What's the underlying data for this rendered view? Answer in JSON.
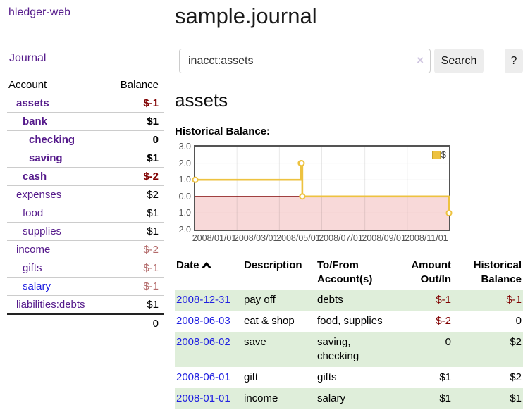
{
  "app": {
    "title": "hledger-web"
  },
  "colors": {
    "accent_purple": "#551a8b",
    "link_blue": "#2020e0",
    "negative_strong": "#800000",
    "negative_soft": "#b36a6a",
    "stripe_green": "#dfeeda",
    "button_gray": "#ededed"
  },
  "sidebar": {
    "journal_link": "Journal",
    "table": {
      "headers": {
        "account": "Account",
        "balance": "Balance"
      },
      "rows": [
        {
          "account": "assets",
          "balance": "$-1",
          "depth": 1,
          "bold": true,
          "neg": "strong"
        },
        {
          "account": "bank",
          "balance": "$1",
          "depth": 2,
          "bold": true,
          "neg": "none"
        },
        {
          "account": "checking",
          "balance": "0",
          "depth": 3,
          "bold": true,
          "neg": "none"
        },
        {
          "account": "saving",
          "balance": "$1",
          "depth": 3,
          "bold": true,
          "neg": "none"
        },
        {
          "account": "cash",
          "balance": "$-2",
          "depth": 2,
          "bold": true,
          "neg": "strong"
        },
        {
          "account": "expenses",
          "balance": "$2",
          "depth": 1,
          "bold": false,
          "neg": "none"
        },
        {
          "account": "food",
          "balance": "$1",
          "depth": 2,
          "bold": false,
          "neg": "none"
        },
        {
          "account": "supplies",
          "balance": "$1",
          "depth": 2,
          "bold": false,
          "neg": "none"
        },
        {
          "account": "income",
          "balance": "$-2",
          "depth": 1,
          "bold": false,
          "neg": "soft"
        },
        {
          "account": "gifts",
          "balance": "$-1",
          "depth": 2,
          "bold": false,
          "neg": "soft"
        },
        {
          "account": "salary",
          "balance": "$-1",
          "depth": 2,
          "bold": false,
          "neg": "soft",
          "link_color": "blue"
        },
        {
          "account": "liabilities:debts",
          "balance": "$1",
          "depth": 1,
          "bold": false,
          "neg": "none"
        }
      ],
      "total": "0"
    }
  },
  "main": {
    "title": "sample.journal",
    "search": {
      "value": "inacct:assets",
      "clear_icon": "×",
      "button": "Search",
      "help_button": "?"
    },
    "account_heading": "assets",
    "chart_heading": "Historical Balance:"
  },
  "chart_data": {
    "type": "line",
    "title": "Historical Balance:",
    "series": [
      {
        "name": "$",
        "color": "#edc240",
        "step": true,
        "points": [
          [
            "2008-01-01",
            1
          ],
          [
            "2008-06-01",
            2
          ],
          [
            "2008-06-02",
            2
          ],
          [
            "2008-06-03",
            0
          ],
          [
            "2008-12-31",
            -1
          ]
        ]
      }
    ],
    "x_range": [
      "2008-01-01",
      "2008-12-31"
    ],
    "ylim": [
      -2,
      3
    ],
    "yticks": [
      "3.0",
      "2.0",
      "1.0",
      "0.0",
      "-1.0",
      "-2.0"
    ],
    "xticks": [
      "2008/01/01",
      "2008/03/01",
      "2008/05/01",
      "2008/07/01",
      "2008/09/01",
      "2008/11/01"
    ],
    "grid": true,
    "negative_region_color": "#f8d9d9",
    "zero_line_color": "#800000",
    "legend": {
      "label": "$",
      "position": "top-right"
    }
  },
  "register_table": {
    "headers": {
      "date": "Date",
      "description": "Description",
      "accounts": "To/From Account(s)",
      "amount": "Amount Out/In",
      "balance": "Historical Balance"
    },
    "sort": {
      "column": "date",
      "direction": "asc"
    },
    "rows": [
      {
        "date": "2008-12-31",
        "description": "pay off",
        "accounts": "debts",
        "amount": "$-1",
        "balance": "$-1",
        "amount_neg": true,
        "balance_neg": true
      },
      {
        "date": "2008-06-03",
        "description": "eat & shop",
        "accounts": "food, supplies",
        "amount": "$-2",
        "balance": "0",
        "amount_neg": true,
        "balance_neg": false
      },
      {
        "date": "2008-06-02",
        "description": "save",
        "accounts": "saving, checking",
        "amount": "0",
        "balance": "$2",
        "amount_neg": false,
        "balance_neg": false
      },
      {
        "date": "2008-06-01",
        "description": "gift",
        "accounts": "gifts",
        "amount": "$1",
        "balance": "$2",
        "amount_neg": false,
        "balance_neg": false
      },
      {
        "date": "2008-01-01",
        "description": "income",
        "accounts": "salary",
        "amount": "$1",
        "balance": "$1",
        "amount_neg": false,
        "balance_neg": false
      }
    ]
  }
}
